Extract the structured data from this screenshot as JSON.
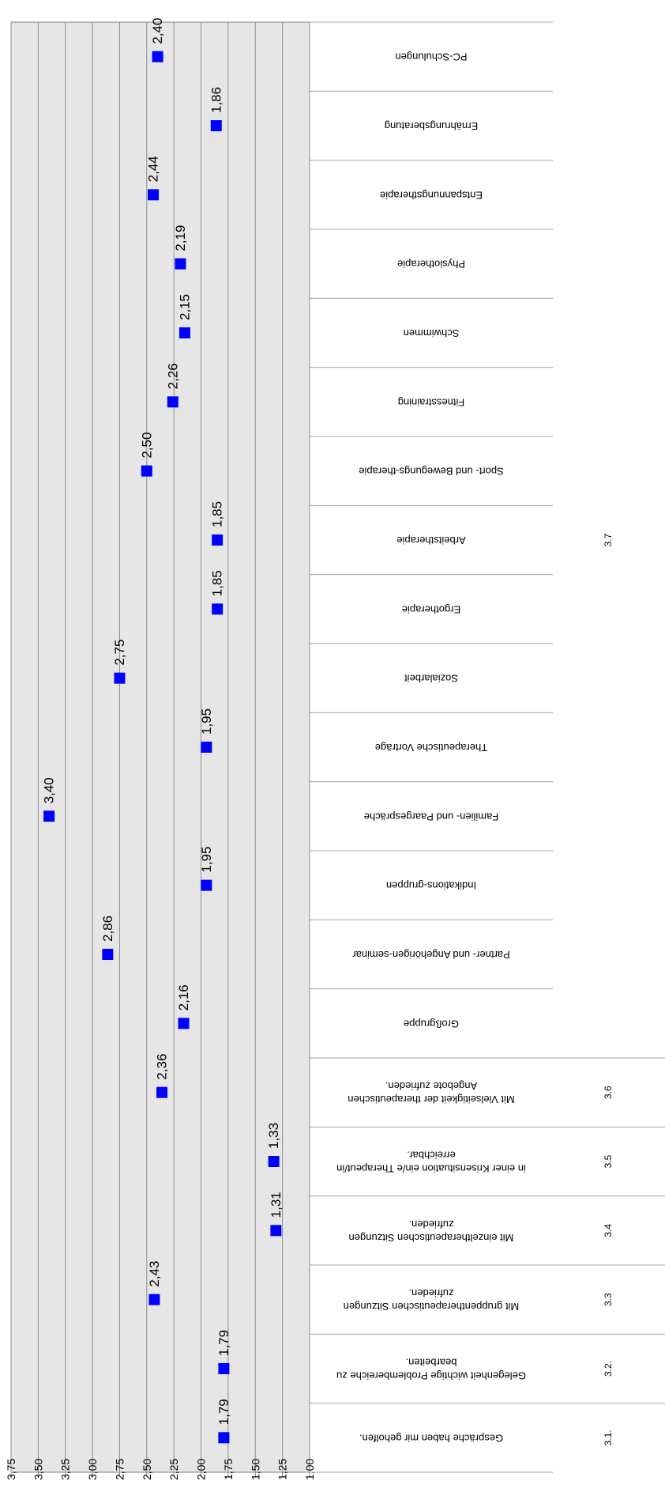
{
  "chart_data": {
    "type": "scatter",
    "orientation": "rotated-180",
    "title": "",
    "xlabel": "",
    "ylabel": "",
    "ylim": [
      1.0,
      3.75
    ],
    "y_ticks": [
      "1,00",
      "1,25",
      "1,50",
      "1,75",
      "2,00",
      "2,25",
      "2,50",
      "2,75",
      "3,00",
      "3,25",
      "3,50",
      "3,75"
    ],
    "grid": true,
    "legend": "none",
    "marker_color": "#0000ff",
    "plot_background": "#e6e6e6",
    "categories": [
      {
        "group": "3.1.",
        "label": [
          "Gespräche haben mir geholfen."
        ],
        "value": 1.79,
        "value_label": "1,79"
      },
      {
        "group": "3.2.",
        "label": [
          "Gelegenheit wichtige Problembereiche zu",
          "bearbeiten."
        ],
        "value": 1.79,
        "value_label": "1,79"
      },
      {
        "group": "3.3",
        "label": [
          "Mit gruppentherapeutischen Sitzungen",
          "zufrieden."
        ],
        "value": 2.43,
        "value_label": "2,43"
      },
      {
        "group": "3.4",
        "label": [
          "Mit einzeltherapeutischen Sitzungen",
          "zufrieden."
        ],
        "value": 1.31,
        "value_label": "1,31"
      },
      {
        "group": "3.5",
        "label": [
          "in einer Krisensituation ein/e Therapeut/in",
          "erreichbar."
        ],
        "value": 1.33,
        "value_label": "1,33"
      },
      {
        "group": "3.6",
        "label": [
          "Mit Vielseitigkeit der therapeutischen",
          "Angebote zufrieden."
        ],
        "value": 2.36,
        "value_label": "2,36"
      },
      {
        "group": "3.7",
        "label": [
          "Großgruppe"
        ],
        "value": 2.16,
        "value_label": "2,16"
      },
      {
        "group": "3.7",
        "label": [
          "Partner- und Angehörigen-seminar"
        ],
        "value": 2.86,
        "value_label": "2,86"
      },
      {
        "group": "3.7",
        "label": [
          "Indikations-gruppen"
        ],
        "value": 1.95,
        "value_label": "1,95"
      },
      {
        "group": "3.7",
        "label": [
          "Familien- und Paargespräche"
        ],
        "value": 3.4,
        "value_label": "3,40"
      },
      {
        "group": "3.7",
        "label": [
          "Therapeutische Vorträge"
        ],
        "value": 1.95,
        "value_label": "1,95"
      },
      {
        "group": "3.7",
        "label": [
          "Sozialarbeit"
        ],
        "value": 2.75,
        "value_label": "2,75"
      },
      {
        "group": "3.7",
        "label": [
          "Ergotherapie"
        ],
        "value": 1.85,
        "value_label": "1,85"
      },
      {
        "group": "3.7",
        "label": [
          "Arbeitstherapie"
        ],
        "value": 1.85,
        "value_label": "1,85"
      },
      {
        "group": "3.7",
        "label": [
          "Sport- und Bewegungs-therapie"
        ],
        "value": 2.5,
        "value_label": "2,50"
      },
      {
        "group": "3.7",
        "label": [
          "Fitnesstraining"
        ],
        "value": 2.26,
        "value_label": "2,26"
      },
      {
        "group": "3.7",
        "label": [
          "Schwimmen"
        ],
        "value": 2.15,
        "value_label": "2,15"
      },
      {
        "group": "3.7",
        "label": [
          "Physiotherapie"
        ],
        "value": 2.19,
        "value_label": "2,19"
      },
      {
        "group": "3.7",
        "label": [
          "Entspannungstherapie"
        ],
        "value": 2.44,
        "value_label": "2,44"
      },
      {
        "group": "3.7",
        "label": [
          "Ernährungsberatung"
        ],
        "value": 1.86,
        "value_label": "1,86"
      },
      {
        "group": "3.7",
        "label": [
          "PC-Schulungen"
        ],
        "value": 2.4,
        "value_label": "2,40"
      }
    ],
    "group_labels": [
      {
        "text": "3.1.",
        "from": 0,
        "to": 0
      },
      {
        "text": "3.2.",
        "from": 1,
        "to": 1
      },
      {
        "text": "3.3",
        "from": 2,
        "to": 2
      },
      {
        "text": "3.4",
        "from": 3,
        "to": 3
      },
      {
        "text": "3.5",
        "from": 4,
        "to": 4
      },
      {
        "text": "3.6",
        "from": 5,
        "to": 5
      },
      {
        "text": "3.7",
        "from": 6,
        "to": 20
      }
    ]
  }
}
